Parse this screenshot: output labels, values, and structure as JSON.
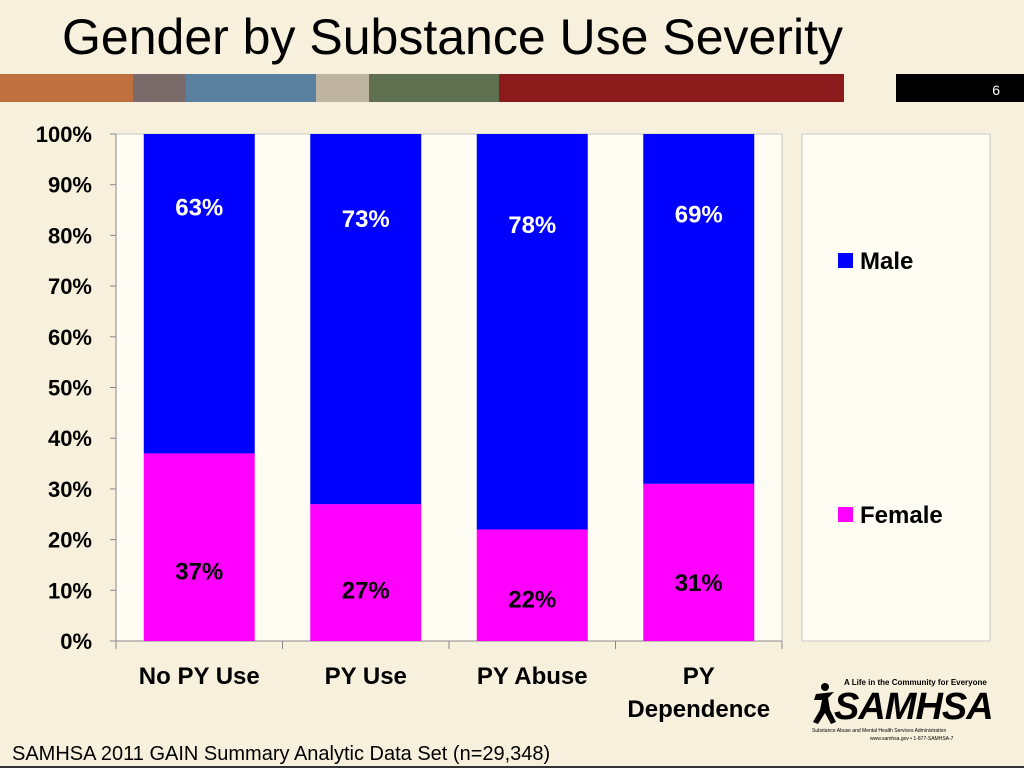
{
  "slide": {
    "title": "Gender by Substance Use Severity",
    "page_number": "6",
    "source": "SAMHSA 2011 GAIN Summary Analytic Data Set (n=29,348)",
    "band_colors": [
      "#c0703e",
      "#7a6a6a",
      "#5a80a0",
      "#bfb4a0",
      "#5f7050",
      "#8b1a1a",
      "#f7f0dc",
      "#000000"
    ]
  },
  "logo": {
    "tagline": "A Life in the Community for Everyone",
    "wordmark": "SAMHSA",
    "subtitle": "Substance Abuse and Mental Health Services Administration",
    "contact": "www.samhsa.gov • 1-877-SAMHSA-7"
  },
  "chart_data": {
    "type": "bar",
    "stacked": true,
    "categories": [
      "No PY Use",
      "PY Use",
      "PY Abuse",
      "PY Dependence"
    ],
    "category_lines": [
      [
        "No PY Use"
      ],
      [
        "PY Use"
      ],
      [
        "PY Abuse"
      ],
      [
        "PY",
        "Dependence"
      ]
    ],
    "series": [
      {
        "name": "Female",
        "values": [
          37,
          27,
          22,
          31
        ],
        "labels": [
          "37%",
          "27%",
          "22%",
          "31%"
        ],
        "color": "#ff00ff"
      },
      {
        "name": "Male",
        "values": [
          63,
          73,
          78,
          69
        ],
        "labels": [
          "63%",
          "73%",
          "78%",
          "69%"
        ],
        "color": "#0000ff"
      }
    ],
    "ylim": [
      0,
      100
    ],
    "y_ticks": [
      "0%",
      "10%",
      "20%",
      "30%",
      "40%",
      "50%",
      "60%",
      "70%",
      "80%",
      "90%",
      "100%"
    ],
    "legend": [
      {
        "name": "Male",
        "color": "#0000ff"
      },
      {
        "name": "Female",
        "color": "#ff00ff"
      }
    ],
    "legend_position": "right",
    "grid": false
  }
}
